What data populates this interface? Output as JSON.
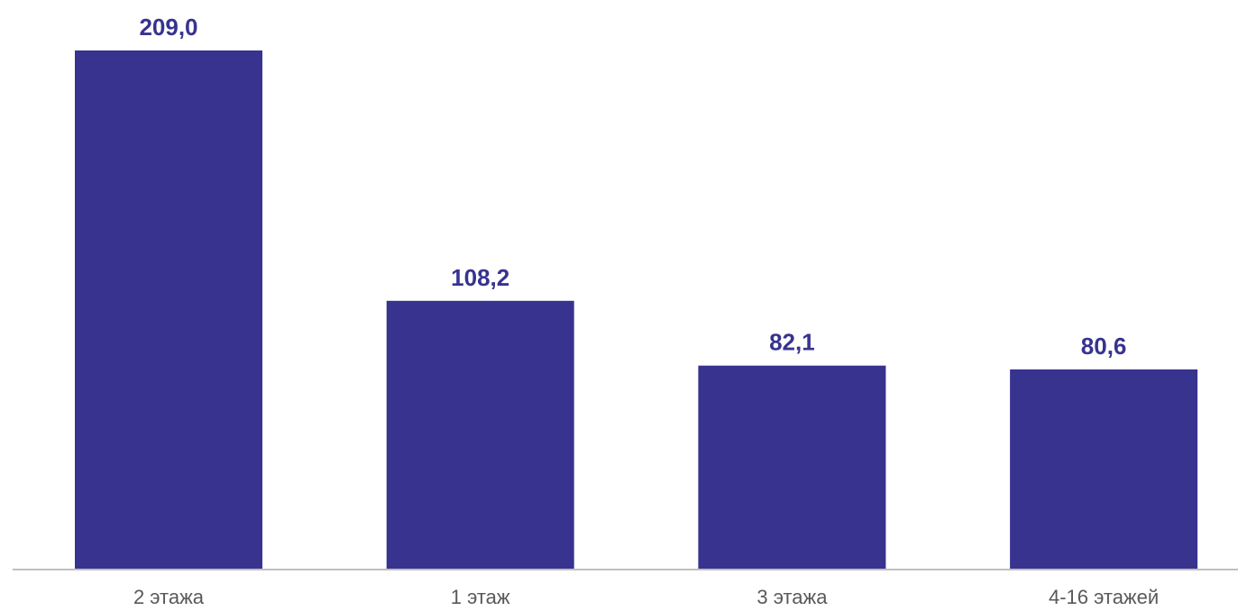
{
  "chart_data": {
    "type": "bar",
    "categories": [
      "2 этажа",
      "1 этаж",
      "3 этажа",
      "4-16 этажей"
    ],
    "values": [
      209.0,
      108.2,
      82.1,
      80.6
    ],
    "value_labels": [
      "209,0",
      "108,2",
      "82,1",
      "80,6"
    ],
    "title": "",
    "xlabel": "",
    "ylabel": "",
    "ylim": [
      0,
      209.0
    ],
    "grid": false,
    "legend": "none",
    "bar_color": "#37338f",
    "label_color": "#37338f",
    "tick_label_color": "#595959",
    "axis_color": "#bfbfbf"
  }
}
